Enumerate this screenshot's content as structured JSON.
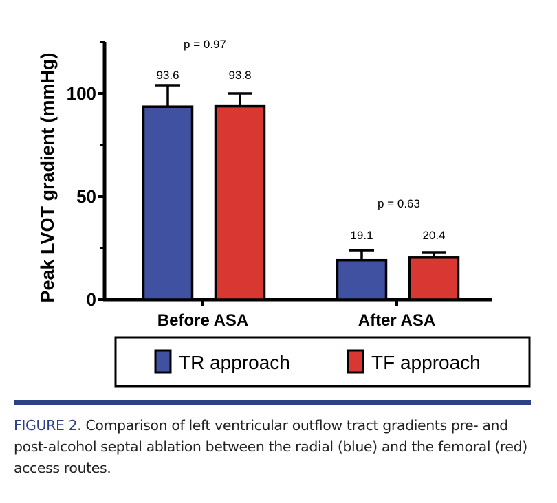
{
  "chart_data": {
    "type": "bar",
    "title": "",
    "xlabel": "",
    "ylabel": "Peak LVOT gradient (mmHg)",
    "ylim": [
      0,
      125
    ],
    "yticks": [
      0,
      50,
      100
    ],
    "ytick_labels": [
      "0",
      "50",
      "100"
    ],
    "yminor_ticks": [
      25,
      75,
      125
    ],
    "grid": false,
    "categories": [
      "Before ASA",
      "After ASA"
    ],
    "series": [
      {
        "name": "TR approach",
        "color": "#3f51a0",
        "values": [
          93.6,
          19.1
        ],
        "error_upper": [
          10.4,
          4.9
        ],
        "data_labels": [
          "93.6",
          "19.1"
        ]
      },
      {
        "name": "TF approach",
        "color": "#d93832",
        "values": [
          93.8,
          20.4
        ],
        "error_upper": [
          6.2,
          2.6
        ],
        "data_labels": [
          "93.8",
          "20.4"
        ]
      }
    ],
    "annotations": [
      "p = 0.97",
      "p = 0.63"
    ],
    "legend_placement": "bottom"
  },
  "caption": {
    "label": "FIGURE 2.",
    "text": " Comparison of left ventricular outflow tract gradients pre- and post-alcohol septal ablation between the radial (blue) and the femoral (red) access routes."
  },
  "colors": {
    "accent": "#2e4088"
  }
}
